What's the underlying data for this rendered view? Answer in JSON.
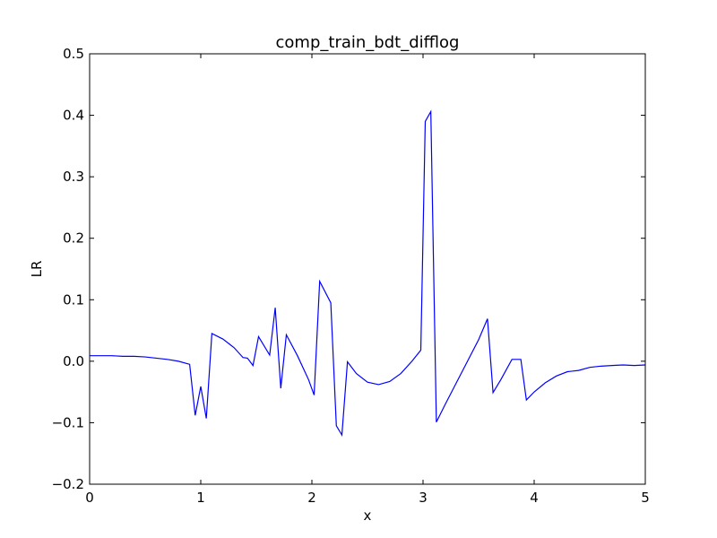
{
  "chart_data": {
    "type": "line",
    "title": "comp_train_bdt_difflog",
    "xlabel": "x",
    "ylabel": "LR",
    "xlim": [
      0,
      5
    ],
    "ylim": [
      -0.2,
      0.5
    ],
    "grid": false,
    "legend": "none",
    "xticks": [
      0,
      1,
      2,
      3,
      4,
      5
    ],
    "xtick_labels": [
      "0",
      "1",
      "2",
      "3",
      "4",
      "5"
    ],
    "yticks": [
      -0.2,
      -0.1,
      0.0,
      0.1,
      0.2,
      0.3,
      0.4,
      0.5
    ],
    "ytick_labels": [
      "−0.2",
      "−0.1",
      "0.0",
      "0.1",
      "0.2",
      "0.3",
      "0.4",
      "0.5"
    ],
    "series": [
      {
        "color": "#0000ff",
        "x": [
          0.0,
          0.1,
          0.2,
          0.3,
          0.4,
          0.5,
          0.6,
          0.7,
          0.8,
          0.9,
          0.95,
          1.0,
          1.05,
          1.1,
          1.2,
          1.3,
          1.38,
          1.42,
          1.47,
          1.52,
          1.62,
          1.67,
          1.72,
          1.77,
          1.87,
          1.97,
          2.02,
          2.07,
          2.17,
          2.22,
          2.27,
          2.32,
          2.4,
          2.5,
          2.6,
          2.7,
          2.8,
          2.9,
          2.98,
          3.02,
          3.07,
          3.12,
          3.2,
          3.3,
          3.4,
          3.5,
          3.58,
          3.63,
          3.7,
          3.8,
          3.83,
          3.88,
          3.93,
          4.0,
          4.1,
          4.2,
          4.3,
          4.35,
          4.4,
          4.5,
          4.6,
          4.7,
          4.8,
          4.9,
          5.0
        ],
        "y": [
          0.009,
          0.009,
          0.009,
          0.008,
          0.008,
          0.007,
          0.005,
          0.003,
          0.0,
          -0.005,
          -0.088,
          -0.041,
          -0.093,
          0.045,
          0.036,
          0.022,
          0.006,
          0.005,
          -0.007,
          0.04,
          0.01,
          0.087,
          -0.044,
          0.043,
          0.009,
          -0.03,
          -0.055,
          0.13,
          0.095,
          -0.105,
          -0.12,
          -0.001,
          -0.02,
          -0.034,
          -0.038,
          -0.033,
          -0.02,
          0.0,
          0.018,
          0.39,
          0.406,
          -0.099,
          -0.07,
          -0.035,
          0.0,
          0.035,
          0.069,
          -0.051,
          -0.03,
          0.003,
          0.003,
          0.003,
          -0.063,
          -0.05,
          -0.035,
          -0.024,
          -0.017,
          -0.016,
          -0.015,
          -0.01,
          -0.008,
          -0.007,
          -0.006,
          -0.007,
          -0.006
        ]
      }
    ]
  }
}
